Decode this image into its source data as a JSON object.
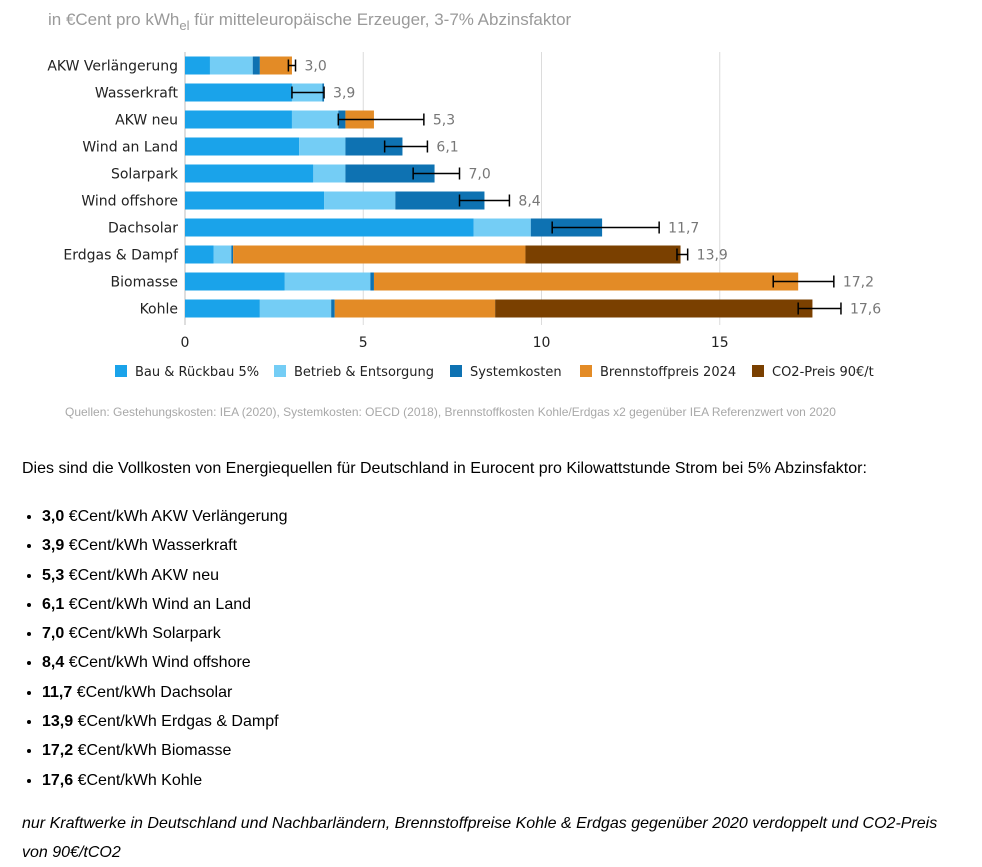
{
  "chart_data": {
    "type": "bar",
    "orientation": "horizontal",
    "stacked": true,
    "subtitle_parts": [
      "in €Cent pro kWh",
      "el",
      " für mitteleuropäische Erzeuger, 3-7% Abzinsfaktor"
    ],
    "categories": [
      "AKW Verlängerung",
      "Wasserkraft",
      "AKW neu",
      "Wind an Land",
      "Solarpark",
      "Wind offshore",
      "Dachsolar",
      "Erdgas & Dampf",
      "Biomasse",
      "Kohle"
    ],
    "series": [
      {
        "name": "Bau & Rückbau 5%",
        "color": "#1aa3ea",
        "values": [
          0.7,
          3.0,
          3.0,
          3.2,
          3.6,
          3.9,
          8.1,
          0.8,
          2.8,
          2.1
        ]
      },
      {
        "name": "Betrieb & Entsorgung",
        "color": "#74cdf5",
        "values": [
          1.2,
          0.85,
          1.3,
          1.3,
          0.9,
          2.0,
          1.6,
          0.5,
          2.4,
          2.0
        ]
      },
      {
        "name": "Systemkosten",
        "color": "#0e72b2",
        "values": [
          0.2,
          0.05,
          0.2,
          1.6,
          2.5,
          2.5,
          2.0,
          0.05,
          0.1,
          0.1
        ]
      },
      {
        "name": "Brennstoffpreis 2024",
        "color": "#e38b26",
        "values": [
          0.9,
          0,
          0.8,
          0,
          0,
          0,
          0,
          8.2,
          11.9,
          4.5
        ]
      },
      {
        "name": "CO2-Preis 90€/t",
        "color": "#7a4000",
        "values": [
          0,
          0,
          0,
          0,
          0,
          0,
          0,
          4.35,
          0,
          8.9
        ]
      }
    ],
    "totals": [
      3.0,
      3.9,
      5.3,
      6.1,
      7.0,
      8.4,
      11.7,
      13.9,
      17.2,
      17.6
    ],
    "total_labels": [
      "3,0",
      "3,9",
      "5,3",
      "6,1",
      "7,0",
      "8,4",
      "11,7",
      "13,9",
      "17,2",
      "17,6"
    ],
    "error_bars": [
      [
        2.9,
        3.1
      ],
      [
        3.0,
        3.9
      ],
      [
        4.3,
        6.7
      ],
      [
        5.6,
        6.8
      ],
      [
        6.4,
        7.7
      ],
      [
        7.7,
        9.1
      ],
      [
        10.3,
        13.3
      ],
      [
        13.8,
        14.1
      ],
      [
        16.5,
        18.2
      ],
      [
        17.2,
        18.4
      ]
    ],
    "xlim": [
      0,
      19
    ],
    "xticks": [
      0,
      5,
      10,
      15
    ],
    "xtick_labels": [
      "0",
      "5",
      "10",
      "15"
    ],
    "grid": "vertical",
    "legend_position": "bottom"
  },
  "source_note": "Quellen: Gestehungskosten: IEA (2020), Systemkosten: OECD (2018), Brennstoffkosten Kohle/Erdgas x2 gegenüber IEA Referenzwert von 2020",
  "intro_text": "Dies sind die Vollkosten von Energiequellen für Deutschland in Eurocent pro Kilowattstunde Strom bei 5% Abzinsfaktor:",
  "cost_list": [
    {
      "value": "3,0",
      "text": " €Cent/kWh AKW Verlängerung"
    },
    {
      "value": "3,9",
      "text": " €Cent/kWh Wasserkraft"
    },
    {
      "value": "5,3",
      "text": " €Cent/kWh AKW neu"
    },
    {
      "value": "6,1",
      "text": " €Cent/kWh Wind an Land"
    },
    {
      "value": "7,0",
      "text": " €Cent/kWh Solarpark"
    },
    {
      "value": "8,4",
      "text": " €Cent/kWh Wind offshore"
    },
    {
      "value": "11,7",
      "text": " €Cent/kWh Dachsolar"
    },
    {
      "value": "13,9",
      "text": " €Cent/kWh Erdgas & Dampf"
    },
    {
      "value": "17,2",
      "text": " €Cent/kWh Biomasse"
    },
    {
      "value": "17,6",
      "text": " €Cent/kWh Kohle"
    }
  ],
  "footnote": "nur Kraftwerke in Deutschland und Nachbarländern, Brennstoffpreise Kohle & Erdgas gegenüber 2020 verdoppelt und CO2-Preis von 90€/tCO2"
}
